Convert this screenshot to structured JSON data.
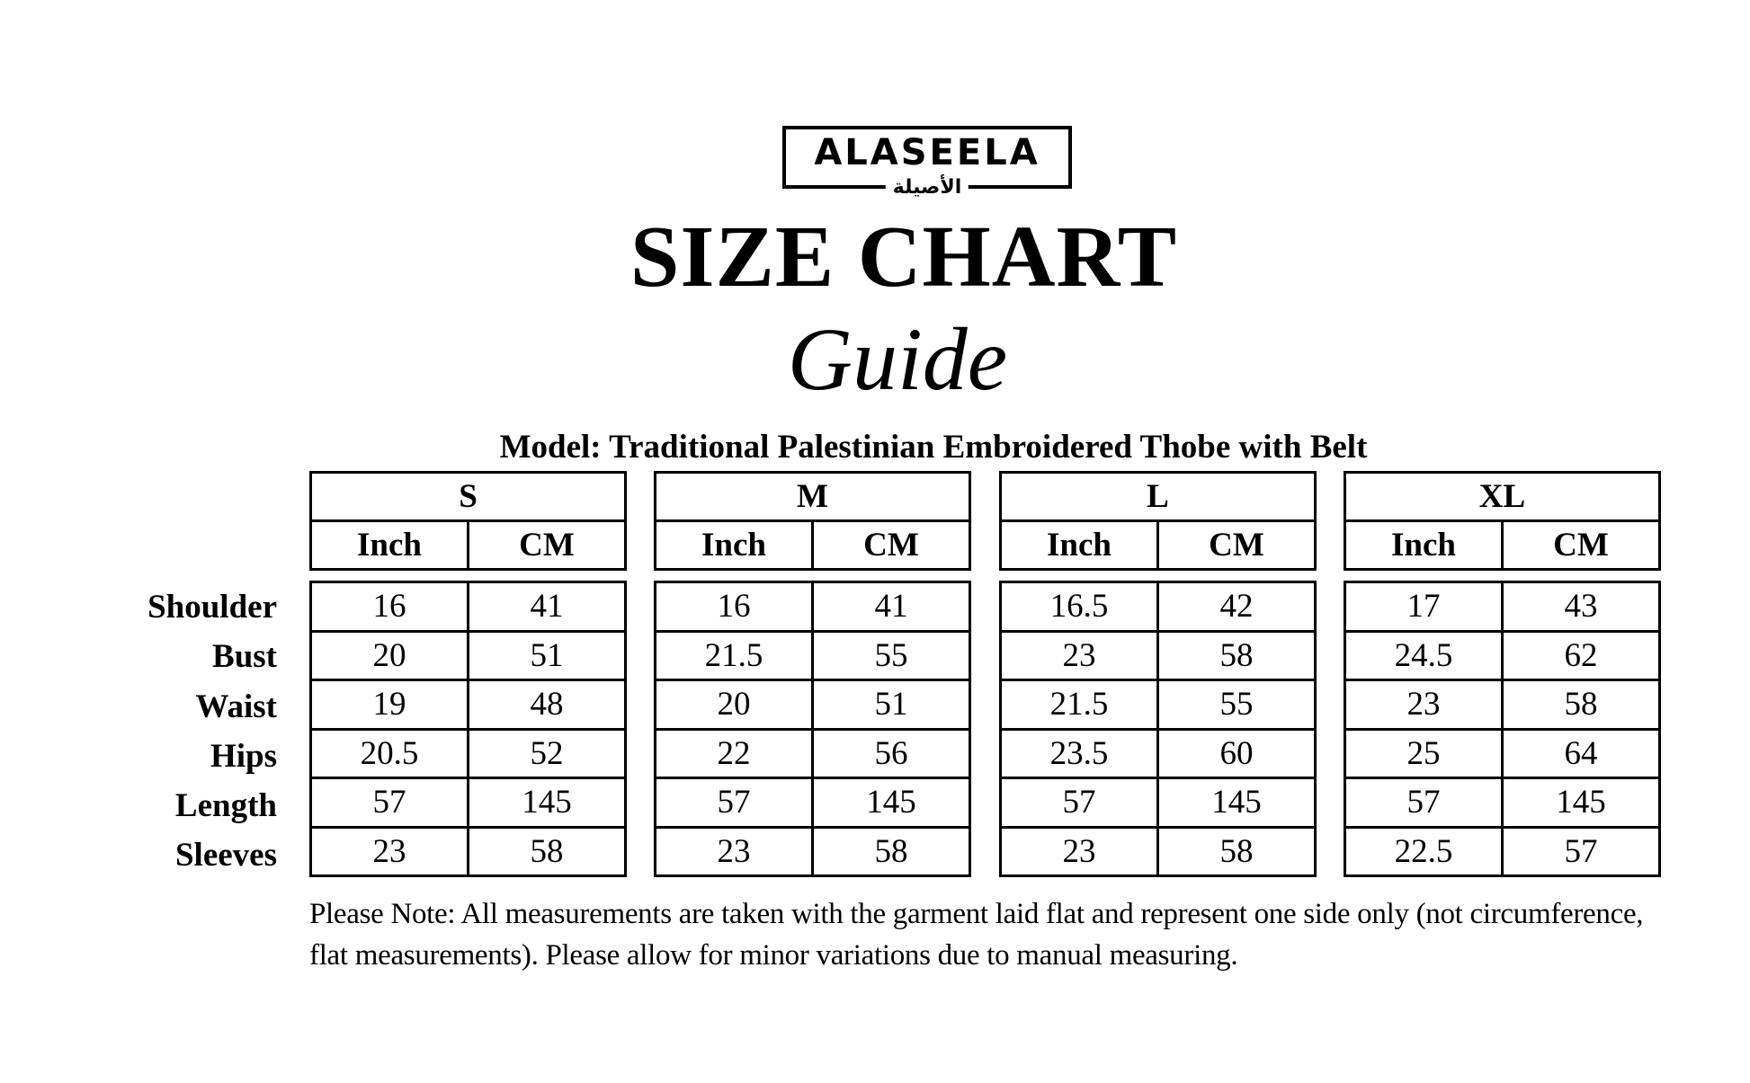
{
  "logo": {
    "text_en": "ALASEELA",
    "text_ar": "الأصيلة"
  },
  "title": "SIZE CHART",
  "subtitle": "Guide",
  "model": "Model: Traditional Palestinian Embroidered Thobe with Belt",
  "units": [
    "Inch",
    "CM"
  ],
  "rows": [
    "Shoulder",
    "Bust",
    "Waist",
    "Hips",
    "Length",
    "Sleeves"
  ],
  "sizes": [
    {
      "name": "S",
      "values": [
        [
          "16",
          "41"
        ],
        [
          "20",
          "51"
        ],
        [
          "19",
          "48"
        ],
        [
          "20.5",
          "52"
        ],
        [
          "57",
          "145"
        ],
        [
          "23",
          "58"
        ]
      ]
    },
    {
      "name": "M",
      "values": [
        [
          "16",
          "41"
        ],
        [
          "21.5",
          "55"
        ],
        [
          "20",
          "51"
        ],
        [
          "22",
          "56"
        ],
        [
          "57",
          "145"
        ],
        [
          "23",
          "58"
        ]
      ]
    },
    {
      "name": "L",
      "values": [
        [
          "16.5",
          "42"
        ],
        [
          "23",
          "58"
        ],
        [
          "21.5",
          "55"
        ],
        [
          "23.5",
          "60"
        ],
        [
          "57",
          "145"
        ],
        [
          "23",
          "58"
        ]
      ]
    },
    {
      "name": "XL",
      "values": [
        [
          "17",
          "43"
        ],
        [
          "24.5",
          "62"
        ],
        [
          "23",
          "58"
        ],
        [
          "25",
          "64"
        ],
        [
          "57",
          "145"
        ],
        [
          "22.5",
          "57"
        ]
      ]
    }
  ],
  "note": "Please Note: All measurements are taken with the garment laid flat and represent one side only (not circumference, flat measurements). Please allow for minor variations due to manual measuring."
}
